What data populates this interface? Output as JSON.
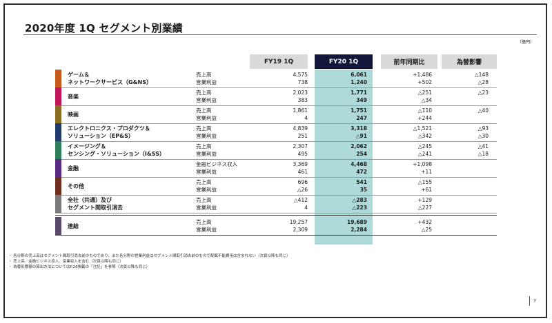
{
  "title": "2020年度 1Q セグメント別業績",
  "unit": "（億円）",
  "columns": {
    "fy19": "FY19 1Q",
    "fy20": "FY20 1Q",
    "yoy": "前年同期比",
    "fx": "為替影響"
  },
  "colors": {
    "header_fy20": "#12163a",
    "fy20_fill": "#aedbd9",
    "header_gray": "#d9d9d9"
  },
  "segments": [
    {
      "name": [
        "ゲーム＆",
        "ネットワークサービス（G&NS）"
      ],
      "color": "#c85a1b",
      "rows": [
        {
          "label": "売上高",
          "fy19": "4,575",
          "fy20": "6,061",
          "yoy": "+1,486",
          "fx": "△148"
        },
        {
          "label": "営業利益",
          "fy19": "738",
          "fy20": "1,240",
          "yoy": "+502",
          "fx": "△28"
        }
      ]
    },
    {
      "name": [
        "音楽"
      ],
      "color": "#c2185b",
      "rows": [
        {
          "label": "売上高",
          "fy19": "2,023",
          "fy20": "1,771",
          "yoy": "△251",
          "fx": "△23"
        },
        {
          "label": "営業利益",
          "fy19": "383",
          "fy20": "349",
          "yoy": "△34",
          "fx": ""
        }
      ]
    },
    {
      "name": [
        "映画"
      ],
      "color": "#8a6d1f",
      "rows": [
        {
          "label": "売上高",
          "fy19": "1,861",
          "fy20": "1,751",
          "yoy": "△110",
          "fx": "△40"
        },
        {
          "label": "営業利益",
          "fy19": "4",
          "fy20": "247",
          "yoy": "+244",
          "fx": ""
        }
      ]
    },
    {
      "name": [
        "エレクトロニクス・プロダクツ＆",
        "ソリューション（EP&S）"
      ],
      "color": "#1f3a6b",
      "rows": [
        {
          "label": "売上高",
          "fy19": "4,839",
          "fy20": "3,318",
          "yoy": "△1,521",
          "fx": "△93"
        },
        {
          "label": "営業利益",
          "fy19": "251",
          "fy20": "△91",
          "yoy": "△342",
          "fx": "△30"
        }
      ]
    },
    {
      "name": [
        "イメージング＆",
        "センシング・ソリューション（I&SS）"
      ],
      "color": "#2e7d5b",
      "rows": [
        {
          "label": "売上高",
          "fy19": "2,307",
          "fy20": "2,062",
          "yoy": "△245",
          "fx": "△41"
        },
        {
          "label": "営業利益",
          "fy19": "495",
          "fy20": "254",
          "yoy": "△241",
          "fx": "△18"
        }
      ]
    },
    {
      "name": [
        "金融"
      ],
      "color": "#5b2a86",
      "rows": [
        {
          "label": "金融ビジネス収入",
          "fy19": "3,369",
          "fy20": "4,468",
          "yoy": "+1,098",
          "fx": ""
        },
        {
          "label": "営業利益",
          "fy19": "461",
          "fy20": "472",
          "yoy": "+11",
          "fx": ""
        }
      ]
    },
    {
      "name": [
        "その他"
      ],
      "color": "#6e2f1e",
      "rows": [
        {
          "label": "売上高",
          "fy19": "696",
          "fy20": "541",
          "yoy": "△155",
          "fx": ""
        },
        {
          "label": "営業利益",
          "fy19": "△26",
          "fy20": "35",
          "yoy": "+61",
          "fx": ""
        }
      ]
    },
    {
      "name": [
        "全社（共通）及び",
        "セグメント間取引消去"
      ],
      "color": "#7a7a7a",
      "rows": [
        {
          "label": "売上高",
          "fy19": "△412",
          "fy20": "△283",
          "yoy": "+129",
          "fx": ""
        },
        {
          "label": "営業利益",
          "fy19": "4",
          "fy20": "△223",
          "yoy": "△227",
          "fx": ""
        }
      ]
    }
  ],
  "consolidated": {
    "name": [
      "連結"
    ],
    "color": "#5a4a6a",
    "rows": [
      {
        "label": "売上高",
        "fy19": "19,257",
        "fy20": "19,689",
        "yoy": "+432",
        "fx": ""
      },
      {
        "label": "営業利益",
        "fy19": "2,309",
        "fy20": "2,284",
        "yoy": "△25",
        "fx": ""
      }
    ]
  },
  "notes": [
    "・ 各分野の売上高はセグメント間取引消去前のものであり、また各分野の営業利益はセグメント間取引消去前のもので配賦不能費用は含まれない（次頁以降も同じ）",
    "・ 売上高／金融ビジネス収入、営業収入を含む（次頁以降も同じ）",
    "・ 為替影響額の算出方法についてはP.28掲載の「注記」を参照（次頁以降も同じ）"
  ],
  "page_number": "7"
}
